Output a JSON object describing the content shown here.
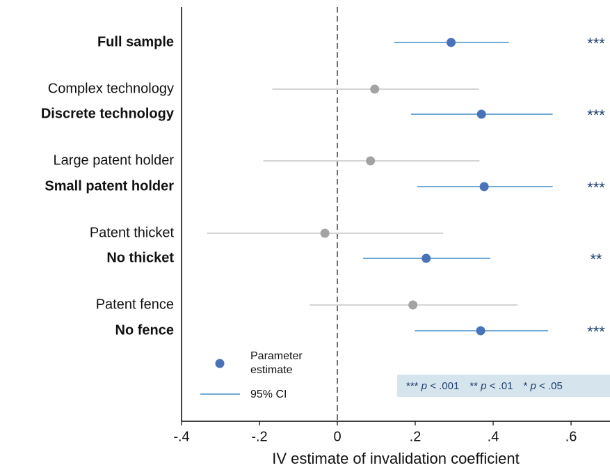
{
  "chart_data": {
    "type": "forest",
    "categories": [
      "Full sample",
      "Complex technology",
      "Discrete technology",
      "Large patent holder",
      "Small patent holder",
      "Patent thicket",
      "No thicket",
      "Patent fence",
      "No fence"
    ],
    "values": [
      0.292,
      0.096,
      0.37,
      0.085,
      0.377,
      -0.032,
      0.228,
      0.194,
      0.368
    ],
    "ci_low": [
      0.146,
      -0.167,
      0.189,
      -0.19,
      0.205,
      -0.335,
      0.066,
      -0.071,
      0.199
    ],
    "ci_high": [
      0.44,
      0.363,
      0.553,
      0.365,
      0.553,
      0.272,
      0.393,
      0.463,
      0.541
    ],
    "annotations": [
      "***",
      null,
      "***",
      null,
      "***",
      null,
      "**",
      null,
      "***"
    ],
    "highlight_point_color": "#4a72b8",
    "highlight_ci_color": "#72aad6",
    "muted_point_color": "#a3a3a3",
    "muted_ci_color": "#d4d4d4",
    "xlabel": "IV estimate of invalidation coefficient",
    "xlim": [
      -0.4,
      0.7
    ],
    "xticks": [
      {
        "value": -0.4,
        "label": "-.4"
      },
      {
        "value": -0.2,
        "label": "-.2"
      },
      0,
      {
        "value": 0.2,
        "label": ".2"
      },
      {
        "value": 0.4,
        "label": ".4"
      },
      {
        "value": 0.6,
        "label": ".6"
      }
    ],
    "reference_line": 0,
    "legend": {
      "point": "Parameter estimate",
      "line": "95% CI"
    },
    "note": [
      [
        "***",
        "p",
        "< .001"
      ],
      [
        "**",
        "p",
        "< .01"
      ],
      [
        "*",
        "p",
        "< .05"
      ]
    ]
  }
}
